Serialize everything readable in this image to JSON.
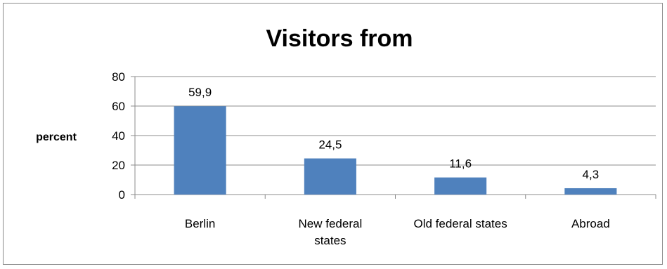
{
  "chart_data": {
    "type": "bar",
    "title": "Visitors from",
    "ylabel": "percent",
    "xlabel": "",
    "categories": [
      [
        "Berlin"
      ],
      [
        "New federal",
        "states"
      ],
      [
        "Old federal  states"
      ],
      [
        "Abroad"
      ]
    ],
    "values": [
      59.9,
      24.5,
      11.6,
      4.3
    ],
    "data_labels": [
      "59,9",
      "24,5",
      "11,6",
      "4,3"
    ],
    "ylim": [
      0,
      80
    ],
    "yticks": [
      "0",
      "20",
      "40",
      "60",
      "80"
    ],
    "grid": "horizontal",
    "legend": "none",
    "bar_color": "#4f81bd"
  }
}
